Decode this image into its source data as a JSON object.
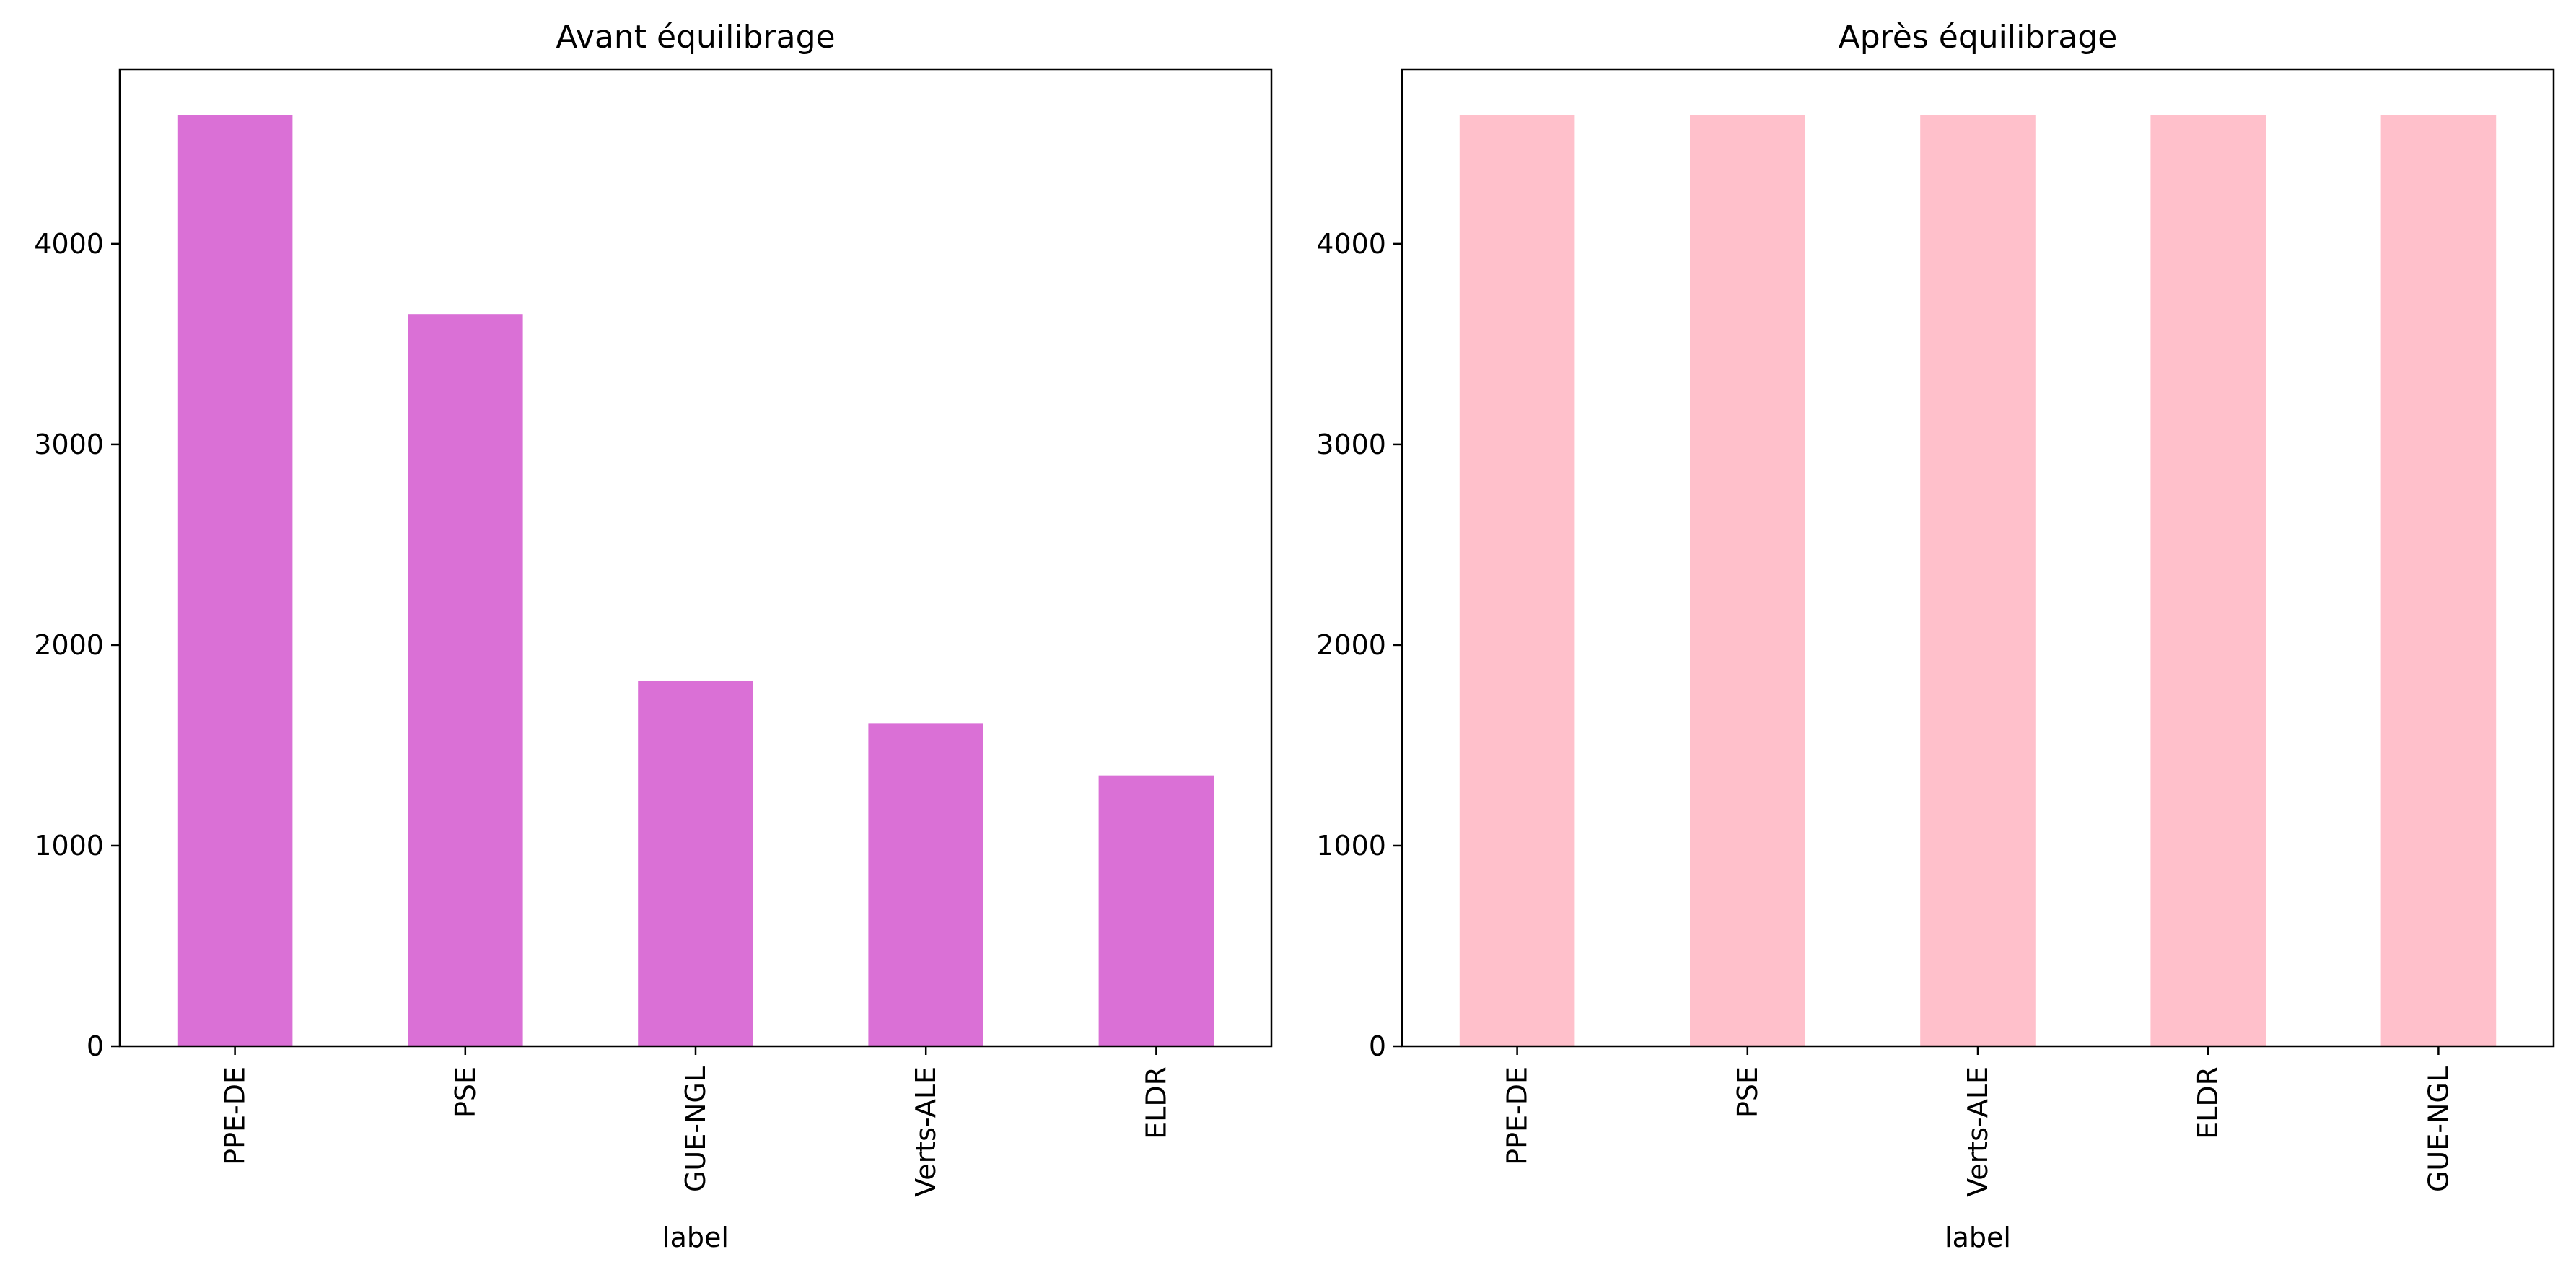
{
  "chart_data": [
    {
      "type": "bar",
      "title": "Avant équilibrage",
      "xlabel": "label",
      "ylabel": "",
      "categories": [
        "PPE-DE",
        "PSE",
        "GUE-NGL",
        "Verts-ALE",
        "ELDR"
      ],
      "values": [
        4640,
        3650,
        1820,
        1610,
        1350
      ],
      "ylim": [
        0,
        4870
      ],
      "yticks": [
        0,
        1000,
        2000,
        3000,
        4000
      ],
      "color": "#da70d6",
      "grid": false,
      "legend": false
    },
    {
      "type": "bar",
      "title": "Après équilibrage",
      "xlabel": "label",
      "ylabel": "",
      "categories": [
        "PPE-DE",
        "PSE",
        "Verts-ALE",
        "ELDR",
        "GUE-NGL"
      ],
      "values": [
        4640,
        4640,
        4640,
        4640,
        4640
      ],
      "ylim": [
        0,
        4870
      ],
      "yticks": [
        0,
        1000,
        2000,
        3000,
        4000
      ],
      "color": "#ffc0cb",
      "grid": false,
      "legend": false
    }
  ]
}
